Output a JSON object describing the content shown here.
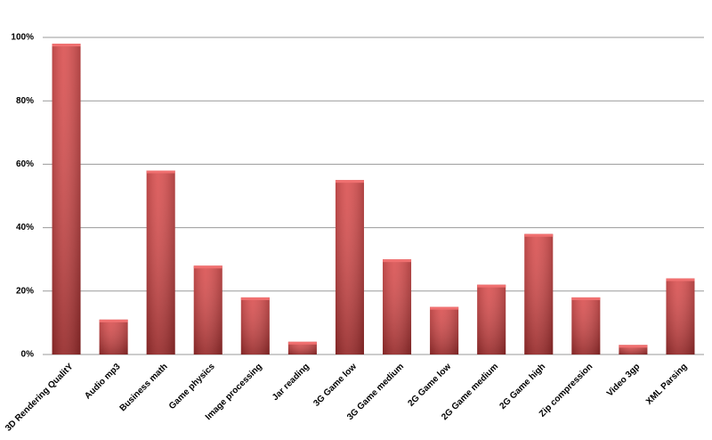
{
  "chart_data": {
    "type": "bar",
    "categories": [
      "3D Rendering QualitY",
      "Audio mp3",
      "Business math",
      "Game physics",
      "Image processing",
      "Jar reading",
      "3G Game low",
      "3G Game medium",
      "2G Game low",
      "2G Game medium",
      "2G Game high",
      "Zip compression",
      "Video 3gp",
      "XML Parsing"
    ],
    "values": [
      98,
      11,
      58,
      28,
      18,
      4,
      55,
      30,
      15,
      22,
      38,
      18,
      3,
      24
    ],
    "color": "#d63c3c",
    "ylim": [
      0,
      100
    ],
    "yticks": [
      {
        "value": 0,
        "label": "0%"
      },
      {
        "value": 20,
        "label": "20%"
      },
      {
        "value": 40,
        "label": "40%"
      },
      {
        "value": 60,
        "label": "60%"
      },
      {
        "value": 80,
        "label": "80%"
      },
      {
        "value": 100,
        "label": "100%"
      }
    ],
    "grid": true
  }
}
